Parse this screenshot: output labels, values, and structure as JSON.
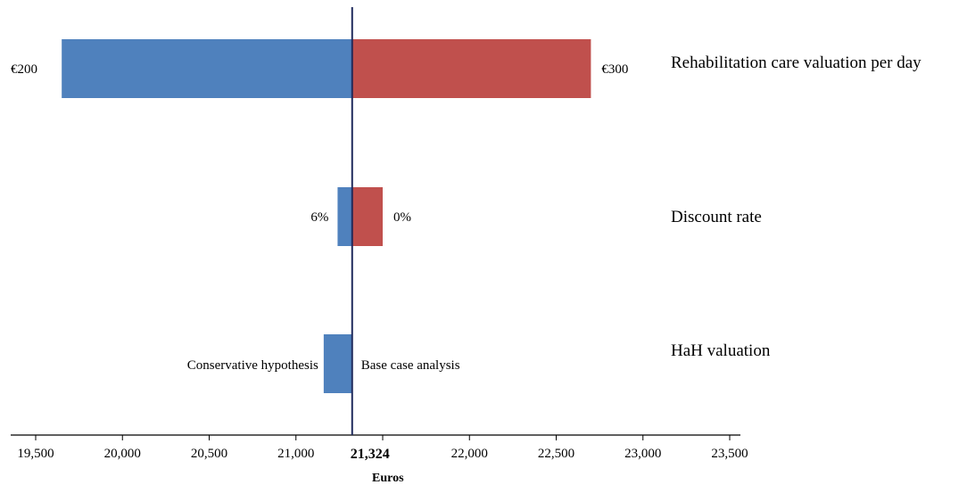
{
  "chart_data": {
    "type": "tornado",
    "xlabel": "Euros",
    "base_value": 21324,
    "base_label": "21,324",
    "xlim": [
      19500,
      23500
    ],
    "ticks": [
      19500,
      20000,
      20500,
      21000,
      21500,
      22000,
      22500,
      23000,
      23500
    ],
    "tick_labels": [
      "19,500",
      "20,000",
      "20,500",
      "21,000",
      "",
      "22,000",
      "22,500",
      "23,000",
      "23,500"
    ],
    "colors": {
      "low": "#4f81bd",
      "high": "#c0504d",
      "base_line": "#1f2a5c"
    },
    "rows": [
      {
        "name": "Rehabilitation  care valuation  per day",
        "low_value": 19650,
        "low_label": "€200",
        "high_value": 22700,
        "high_label": "€300"
      },
      {
        "name": "Discount  rate",
        "low_value": 21240,
        "low_label": "6%",
        "high_value": 21500,
        "high_label": "0%"
      },
      {
        "name": "HaH valuation",
        "low_value": 21160,
        "low_label": "Conservative hypothesis",
        "high_value": 21324,
        "high_label": "Base case analysis"
      }
    ]
  }
}
